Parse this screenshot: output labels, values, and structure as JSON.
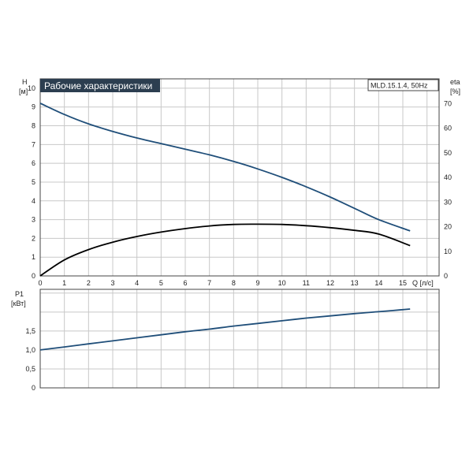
{
  "chart_data": [
    {
      "type": "line",
      "title": "Рабочие характеристики",
      "model": "MLD.15.1.4, 50Hz",
      "xlabel": "Q [л/с]",
      "ylabel_left_top": "H",
      "ylabel_left_unit": "[м]",
      "ylabel_right_top": "eta",
      "ylabel_right_unit": "[%]",
      "xlim": [
        0,
        16.5
      ],
      "ylim_left": [
        0,
        10.5
      ],
      "ylim_right": [
        0,
        80
      ],
      "grid": true,
      "x_ticks": [
        "0",
        "1",
        "2",
        "3",
        "4",
        "5",
        "6",
        "7",
        "8",
        "9",
        "10",
        "11",
        "12",
        "13",
        "14",
        "15"
      ],
      "y_ticks_left": [
        "0",
        "1",
        "2",
        "3",
        "4",
        "5",
        "6",
        "7",
        "8",
        "9",
        "10"
      ],
      "y_ticks_right": [
        "0",
        "10",
        "20",
        "30",
        "40",
        "50",
        "60",
        "70"
      ],
      "series": [
        {
          "axis": "left",
          "color": "#1f4e79",
          "x": [
            0,
            1,
            2,
            3,
            4,
            5,
            6,
            7,
            8,
            9,
            10,
            11,
            12,
            13,
            14,
            15.3
          ],
          "y": [
            9.2,
            8.6,
            8.1,
            7.7,
            7.35,
            7.05,
            6.75,
            6.45,
            6.1,
            5.7,
            5.25,
            4.75,
            4.2,
            3.6,
            3.0,
            2.4
          ]
        },
        {
          "axis": "right",
          "color": "#000000",
          "x": [
            0,
            1,
            2,
            3,
            4,
            5,
            6,
            7,
            8,
            9,
            10,
            11,
            12,
            13,
            14,
            15.3
          ],
          "y": [
            0,
            6.5,
            10.7,
            13.7,
            16.0,
            17.8,
            19.2,
            20.3,
            20.9,
            21.0,
            20.9,
            20.4,
            19.6,
            18.5,
            17.0,
            12.3
          ]
        }
      ]
    },
    {
      "type": "line",
      "ylabel_top": "P1",
      "ylabel_unit": "[кВт]",
      "xlim": [
        0,
        16.5
      ],
      "ylim": [
        0,
        2.6
      ],
      "grid": true,
      "y_ticks": [
        "0",
        "0,5",
        "1,0",
        "1,5"
      ],
      "series": [
        {
          "color": "#1f4e79",
          "x": [
            0,
            1,
            2,
            3,
            4,
            5,
            6,
            7,
            8,
            9,
            10,
            11,
            12,
            13,
            14,
            15.3
          ],
          "y": [
            1.0,
            1.08,
            1.16,
            1.24,
            1.32,
            1.4,
            1.48,
            1.55,
            1.63,
            1.7,
            1.77,
            1.84,
            1.9,
            1.96,
            2.01,
            2.08
          ]
        }
      ]
    }
  ]
}
